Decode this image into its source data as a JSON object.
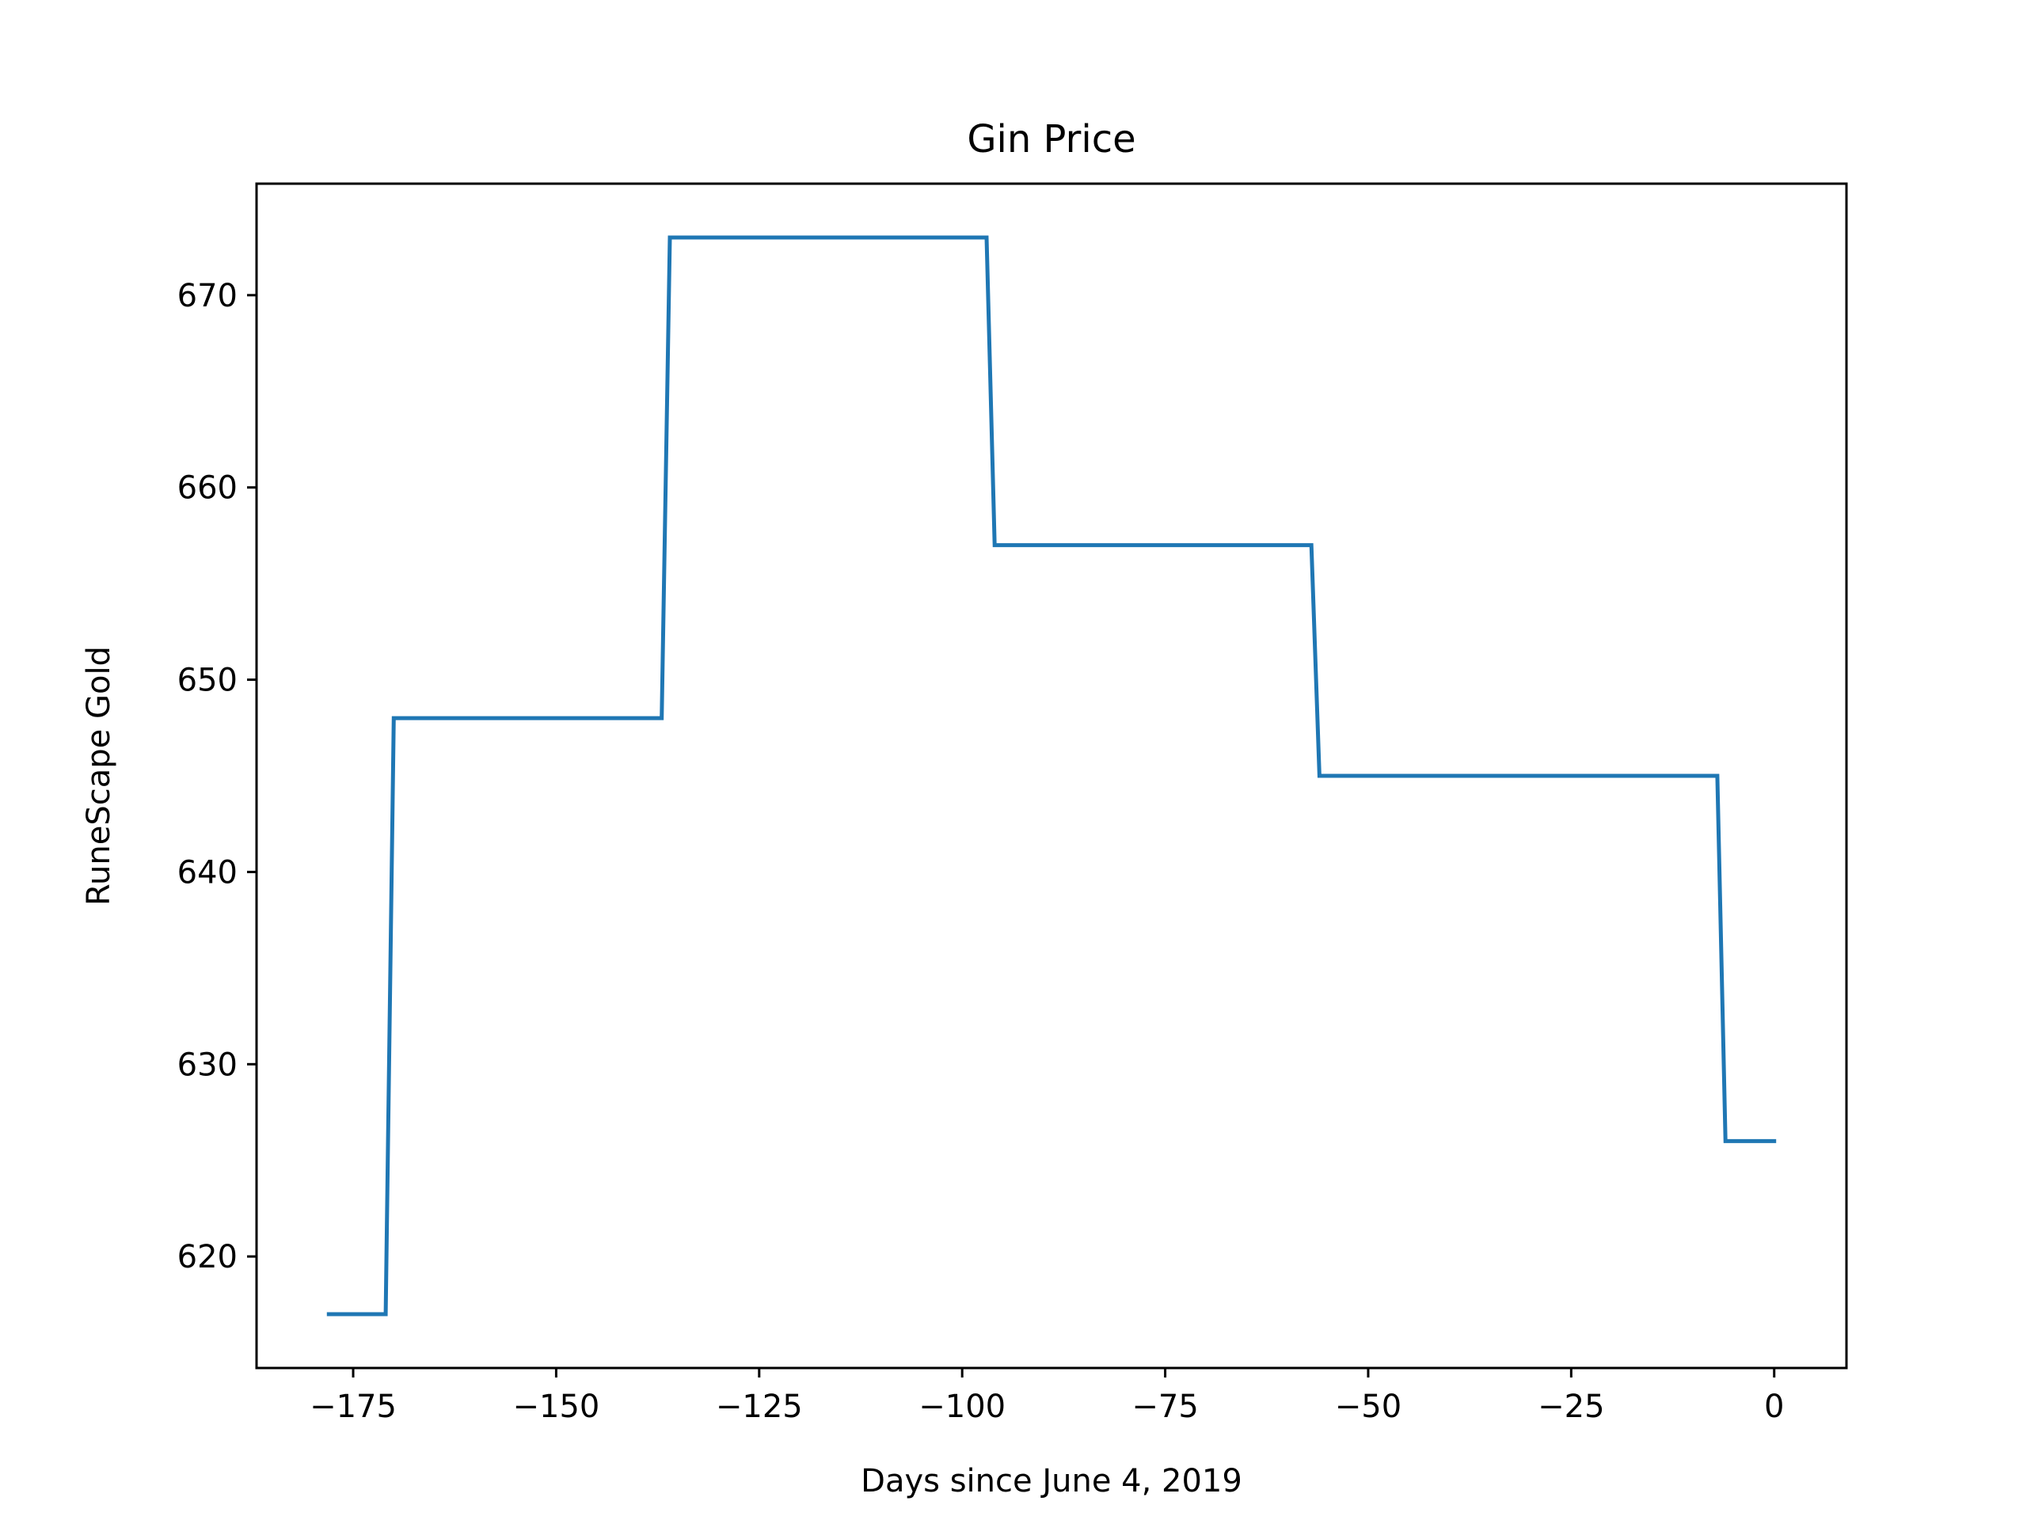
{
  "chart_data": {
    "type": "line",
    "title": "Gin Price",
    "xlabel": "Days since June 4, 2019",
    "ylabel": "RuneScape Gold",
    "xlim": [
      -186.9,
      8.9
    ],
    "ylim": [
      614.2,
      675.8
    ],
    "xticks": [
      -175,
      -150,
      -125,
      -100,
      -75,
      -50,
      -25,
      0
    ],
    "xtick_labels": [
      "−175",
      "−150",
      "−125",
      "−100",
      "−75",
      "−50",
      "−25",
      "0"
    ],
    "yticks": [
      620,
      630,
      640,
      650,
      660,
      670
    ],
    "ytick_labels": [
      "620",
      "630",
      "640",
      "650",
      "660",
      "670"
    ],
    "grid": false,
    "series": [
      {
        "color": "#1f77b4",
        "x": [
          -178,
          -171,
          -170,
          -137,
          -136,
          -97,
          -96,
          -57,
          -56,
          -7,
          -6,
          0
        ],
        "y": [
          617,
          617,
          648,
          648,
          673,
          673,
          657,
          657,
          645,
          645,
          626,
          626
        ]
      }
    ]
  }
}
